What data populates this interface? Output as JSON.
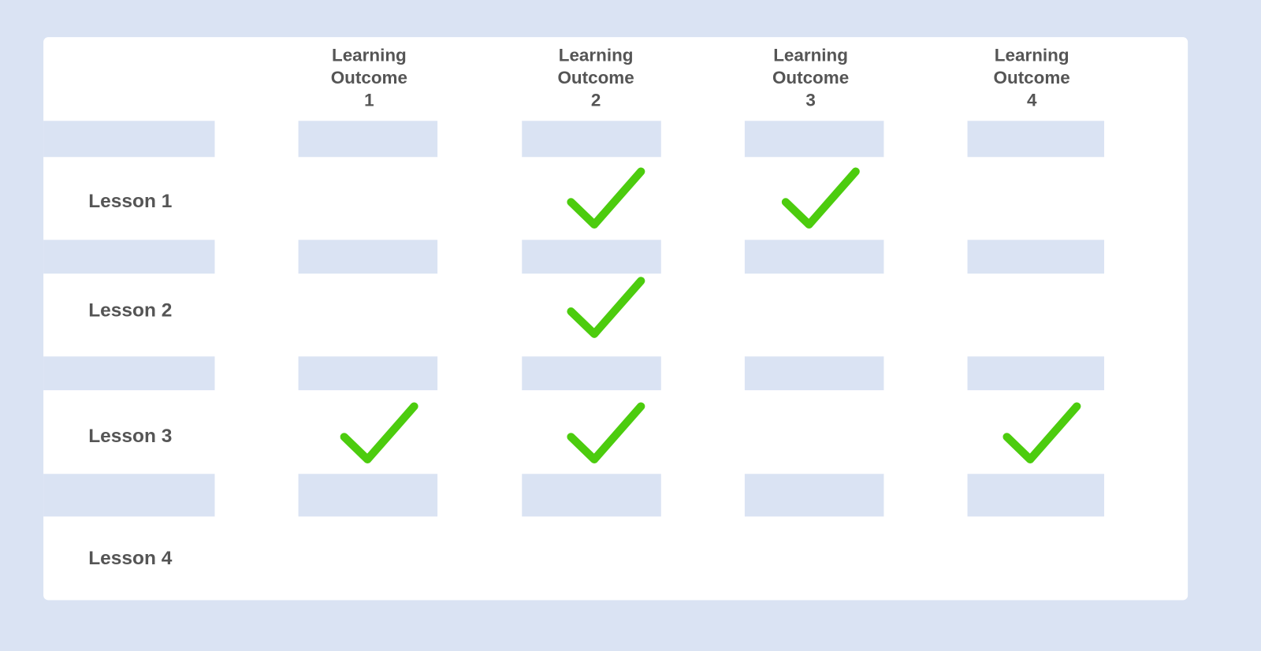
{
  "headers": [
    [
      "Learning",
      "Outcome",
      "1"
    ],
    [
      "Learning",
      "Outcome",
      "2"
    ],
    [
      "Learning",
      "Outcome",
      "3"
    ],
    [
      "Learning",
      "Outcome",
      "4"
    ]
  ],
  "rows": [
    {
      "label": "Lesson 1",
      "checks": [
        false,
        true,
        true,
        false
      ]
    },
    {
      "label": "Lesson 2",
      "checks": [
        false,
        true,
        false,
        false
      ]
    },
    {
      "label": "Lesson 3",
      "checks": [
        true,
        true,
        false,
        true
      ]
    },
    {
      "label": "Lesson 4",
      "checks": [
        false,
        false,
        false,
        false
      ]
    }
  ]
}
